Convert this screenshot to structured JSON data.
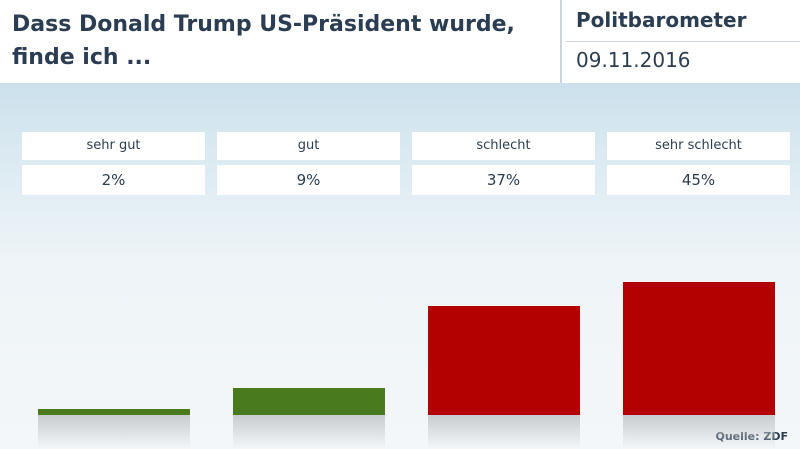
{
  "header": {
    "title": "Dass Donald Trump US-Präsident wurde, finde ich ...",
    "brand": "Politbarometer",
    "date": "09.11.2016"
  },
  "chart_data": {
    "type": "bar",
    "categories": [
      "sehr gut",
      "gut",
      "schlecht",
      "sehr schlecht"
    ],
    "values": [
      2,
      9,
      37,
      45
    ],
    "value_labels": [
      "2%",
      "9%",
      "37%",
      "45%"
    ],
    "colors": [
      "#4a7a1e",
      "#4a7a1e",
      "#b30000",
      "#b30000"
    ]
  },
  "source": "Quelle: ZDF"
}
